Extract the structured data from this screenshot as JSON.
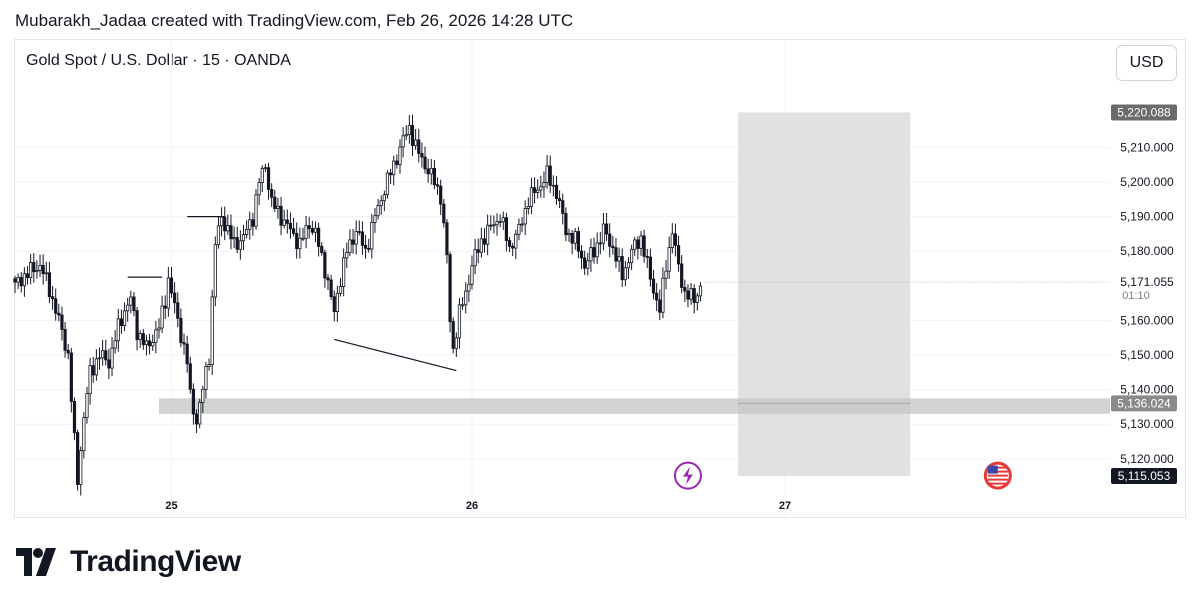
{
  "header": {
    "title": "Mubarakh_Jadaa created with TradingView.com, Feb 26, 2026 14:28 UTC"
  },
  "symbol": {
    "label": "Gold Spot / U.S. Dollar · 15 · OANDA"
  },
  "currency_button": "USD",
  "brand": {
    "name": "TradingView"
  },
  "colors": {
    "candle": "#131722",
    "zone": "#c4c4c4",
    "box": "#dcdcdc",
    "alert": "#9c27b0",
    "flag": "#e53935"
  },
  "chart_data": {
    "type": "candlestick",
    "symbol": "Gold Spot / U.S. Dollar",
    "timeframe": "15",
    "exchange": "OANDA",
    "currency": "USD",
    "y_range": [
      5111,
      5226
    ],
    "y_ticks": [
      "5,210.000",
      "5,200.000",
      "5,190.000",
      "5,180.000",
      "5,160.000",
      "5,150.000",
      "5,140.000",
      "5,130.000",
      "5,120.000"
    ],
    "x_ticks": [
      {
        "label": "25",
        "index": 50
      },
      {
        "label": "26",
        "index": 146
      },
      {
        "label": "27",
        "index": 246
      }
    ],
    "price_labels": [
      {
        "text": "5,220.088",
        "value": 5220.088,
        "style": "box"
      },
      {
        "text": "5,136.024",
        "value": 5136.024,
        "style": "zone"
      },
      {
        "text": "5,115.053",
        "value": 5115.053,
        "style": "dark"
      }
    ],
    "last_price": {
      "text": "5,171.055",
      "value": 5171.055,
      "countdown": "01:10"
    },
    "anchors": [
      [
        0,
        5170
      ],
      [
        3,
        5173
      ],
      [
        8,
        5176
      ],
      [
        11,
        5169
      ],
      [
        14,
        5160
      ],
      [
        17,
        5150
      ],
      [
        19,
        5125
      ],
      [
        20,
        5114
      ],
      [
        22,
        5132
      ],
      [
        24,
        5145
      ],
      [
        27,
        5150
      ],
      [
        30,
        5148
      ],
      [
        33,
        5158
      ],
      [
        35,
        5163
      ],
      [
        37,
        5166
      ],
      [
        39,
        5157
      ],
      [
        42,
        5152
      ],
      [
        46,
        5158
      ],
      [
        48,
        5166
      ],
      [
        49,
        5172
      ],
      [
        52,
        5160
      ],
      [
        55,
        5148
      ],
      [
        56,
        5138
      ],
      [
        58,
        5131
      ],
      [
        60,
        5140
      ],
      [
        62,
        5150
      ],
      [
        64,
        5182
      ],
      [
        66,
        5190
      ],
      [
        68,
        5186
      ],
      [
        70,
        5182
      ],
      [
        73,
        5184
      ],
      [
        76,
        5190
      ],
      [
        78,
        5200
      ],
      [
        80,
        5205
      ],
      [
        82,
        5194
      ],
      [
        85,
        5190
      ],
      [
        88,
        5186
      ],
      [
        91,
        5182
      ],
      [
        94,
        5188
      ],
      [
        96,
        5185
      ],
      [
        99,
        5175
      ],
      [
        102,
        5162
      ],
      [
        103,
        5168
      ],
      [
        106,
        5180
      ],
      [
        109,
        5186
      ],
      [
        112,
        5180
      ],
      [
        115,
        5190
      ],
      [
        118,
        5198
      ],
      [
        121,
        5205
      ],
      [
        124,
        5212
      ],
      [
        126,
        5216
      ],
      [
        128,
        5210
      ],
      [
        131,
        5205
      ],
      [
        134,
        5200
      ],
      [
        136,
        5196
      ],
      [
        138,
        5178
      ],
      [
        139,
        5160
      ],
      [
        140,
        5152
      ],
      [
        142,
        5162
      ],
      [
        144,
        5168
      ],
      [
        146,
        5176
      ],
      [
        149,
        5183
      ],
      [
        152,
        5187
      ],
      [
        155,
        5190
      ],
      [
        158,
        5181
      ],
      [
        161,
        5186
      ],
      [
        164,
        5195
      ],
      [
        167,
        5198
      ],
      [
        170,
        5202
      ],
      [
        173,
        5197
      ],
      [
        176,
        5186
      ],
      [
        179,
        5183
      ],
      [
        182,
        5176
      ],
      [
        185,
        5180
      ],
      [
        188,
        5186
      ],
      [
        191,
        5181
      ],
      [
        194,
        5173
      ],
      [
        197,
        5180
      ],
      [
        200,
        5184
      ],
      [
        203,
        5172
      ],
      [
        206,
        5163
      ],
      [
        208,
        5176
      ],
      [
        210,
        5186
      ],
      [
        212,
        5175
      ],
      [
        214,
        5168
      ],
      [
        217,
        5166
      ],
      [
        219,
        5170
      ]
    ],
    "annotations": [
      {
        "type": "trendline",
        "from": [
          36,
          5172.5
        ],
        "to": [
          47,
          5172.5
        ]
      },
      {
        "type": "trendline",
        "from": [
          55,
          5190
        ],
        "to": [
          67,
          5190
        ]
      },
      {
        "type": "trendline",
        "from": [
          102,
          5154.5
        ],
        "to": [
          141,
          5145.5
        ]
      },
      {
        "type": "zone",
        "from_index": 46,
        "price_top": 5137.5,
        "price_bottom": 5133,
        "extends_right": true
      },
      {
        "type": "box",
        "from_index": 231,
        "to_index": 286,
        "price_top": 5220.088,
        "price_bottom": 5115.053,
        "entry": 5136.024
      },
      {
        "type": "marker",
        "icon": "lightning",
        "index": 215,
        "price": 5114
      },
      {
        "type": "marker",
        "icon": "us-flag",
        "index": 314,
        "price": 5114
      }
    ]
  }
}
